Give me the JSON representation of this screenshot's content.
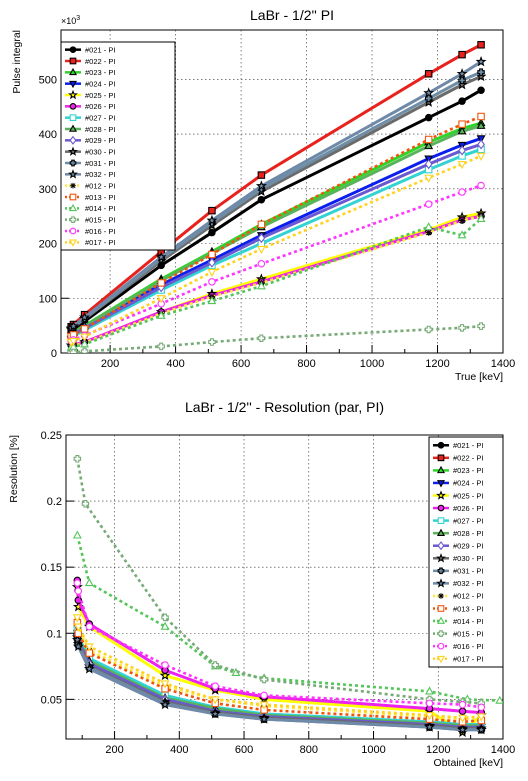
{
  "series_styles": [
    {
      "name": "#021 - PI",
      "color": "#000000",
      "dash": false,
      "marker": "circle-filled"
    },
    {
      "name": "#022 - PI",
      "color": "#e8211c",
      "dash": false,
      "marker": "square-filled"
    },
    {
      "name": "#023 - PI",
      "color": "#2fd62a",
      "dash": false,
      "marker": "triangle-filled"
    },
    {
      "name": "#024 - PI",
      "color": "#0a1ef0",
      "dash": false,
      "marker": "triangle-down-filled"
    },
    {
      "name": "#025 - PI",
      "color": "#ffff00",
      "dash": false,
      "marker": "star-filled"
    },
    {
      "name": "#026 - PI",
      "color": "#ee22ee",
      "dash": false,
      "marker": "circle-filled"
    },
    {
      "name": "#027 - PI",
      "color": "#33d3d3",
      "dash": false,
      "marker": "square-open"
    },
    {
      "name": "#028 - PI",
      "color": "#59b35a",
      "dash": false,
      "marker": "triangle-filled"
    },
    {
      "name": "#029 - PI",
      "color": "#6a59d0",
      "dash": false,
      "marker": "diamond-open"
    },
    {
      "name": "#030 - PI",
      "color": "#6b6b6b",
      "dash": false,
      "marker": "star-filled"
    },
    {
      "name": "#031 - PI",
      "color": "#6e8da6",
      "dash": false,
      "marker": "cross-filled"
    },
    {
      "name": "#032 - PI",
      "color": "#6f8aa8",
      "dash": false,
      "marker": "star-filled"
    },
    {
      "name": "#012 - PI",
      "color": "#ffe83a",
      "dash": true,
      "marker": "asterisk"
    },
    {
      "name": "#013 - PI",
      "color": "#f0550e",
      "dash": true,
      "marker": "square-open"
    },
    {
      "name": "#014 - PI",
      "color": "#55c55a",
      "dash": true,
      "marker": "triangle-open"
    },
    {
      "name": "#015 - PI",
      "color": "#77aa77",
      "dash": true,
      "marker": "cross-open"
    },
    {
      "name": "#016 - PI",
      "color": "#ff33ff",
      "dash": true,
      "marker": "circle-open"
    },
    {
      "name": "#017 - PI",
      "color": "#ffd21e",
      "dash": true,
      "marker": "triangle-down-open"
    }
  ],
  "chart_data": [
    {
      "type": "line",
      "title": "LaBr - 1/2'' PI",
      "xlabel": "True [keV]",
      "ylabel": "Pulse integral",
      "y_exponent_label": "×10",
      "y_exponent_power": "3",
      "xlim": [
        50,
        1400
      ],
      "ylim": [
        0,
        590
      ],
      "xticks": [
        200,
        400,
        600,
        800,
        1000,
        1200,
        1400
      ],
      "yticks": [
        0,
        100,
        200,
        300,
        400,
        500
      ],
      "grid": true,
      "legend_position": "top-left",
      "x": [
        81,
        88,
        122,
        356,
        511,
        662,
        1173,
        1275,
        1333
      ],
      "series": [
        {
          "name": "#021 - PI",
          "values": [
            40,
            43,
            58,
            160,
            220,
            280,
            430,
            460,
            480
          ]
        },
        {
          "name": "#022 - PI",
          "values": [
            48,
            52,
            70,
            185,
            260,
            325,
            510,
            545,
            563
          ]
        },
        {
          "name": "#023 - PI",
          "values": [
            35,
            38,
            50,
            135,
            185,
            235,
            385,
            410,
            420
          ]
        },
        {
          "name": "#024 - PI",
          "values": [
            32,
            35,
            47,
            125,
            170,
            215,
            355,
            380,
            392
          ]
        },
        {
          "name": "#025 - PI",
          "values": [
            14,
            15,
            20,
            75,
            108,
            135,
            225,
            248,
            255
          ]
        },
        {
          "name": "#026 - PI",
          "values": [
            14,
            15,
            20,
            75,
            105,
            130,
            222,
            243,
            250
          ]
        },
        {
          "name": "#027 - PI",
          "values": [
            28,
            31,
            42,
            115,
            160,
            200,
            335,
            360,
            372
          ]
        },
        {
          "name": "#028 - PI",
          "values": [
            34,
            37,
            49,
            132,
            182,
            230,
            378,
            405,
            415
          ]
        },
        {
          "name": "#029 - PI",
          "values": [
            31,
            34,
            45,
            120,
            165,
            210,
            345,
            370,
            381
          ]
        },
        {
          "name": "#030 - PI",
          "values": [
            43,
            47,
            62,
            168,
            233,
            295,
            458,
            490,
            505
          ]
        },
        {
          "name": "#031 - PI",
          "values": [
            44,
            48,
            63,
            172,
            238,
            300,
            465,
            498,
            513
          ]
        },
        {
          "name": "#032 - PI",
          "values": [
            45,
            49,
            65,
            175,
            242,
            305,
            475,
            510,
            532
          ]
        },
        {
          "name": "#012 - PI",
          "values": [
            12,
            13,
            19,
            72,
            103,
            128,
            220,
            242,
            250
          ]
        },
        {
          "name": "#013 - PI",
          "values": [
            30,
            33,
            44,
            128,
            180,
            235,
            390,
            418,
            432
          ]
        },
        {
          "name": "#014 - PI",
          "values": [
            10,
            11,
            16,
            68,
            95,
            122,
            230,
            215,
            245
          ]
        },
        {
          "name": "#015 - PI",
          "values": [
            1,
            1,
            3,
            12,
            20,
            27,
            43,
            46,
            49
          ]
        },
        {
          "name": "#016 - PI",
          "values": [
            22,
            24,
            32,
            90,
            130,
            163,
            272,
            294,
            306
          ]
        },
        {
          "name": "#017 - PI",
          "values": [
            20,
            22,
            30,
            100,
            148,
            190,
            320,
            345,
            360
          ]
        }
      ]
    },
    {
      "type": "line",
      "title": "LaBr - 1/2'' - Resolution (par, PI)",
      "xlabel": "Obtained [keV]",
      "ylabel": "Resolution [%]",
      "xlim": [
        50,
        1400
      ],
      "ylim": [
        0.02,
        0.25
      ],
      "xticks": [
        200,
        400,
        600,
        800,
        1000,
        1200,
        1400
      ],
      "yticks": [
        0.05,
        0.1,
        0.15,
        0.2,
        0.25
      ],
      "ytick_labels": [
        "0.05",
        "0.1",
        "0.15",
        "0.2",
        "0.25"
      ],
      "grid": true,
      "legend_position": "top-right",
      "series": [
        {
          "name": "#021 - PI",
          "x": [
            85,
            88,
            122,
            356,
            511,
            662,
            1173,
            1275,
            1333
          ],
          "values": [
            0.098,
            0.093,
            0.075,
            0.048,
            0.04,
            0.036,
            0.03,
            0.028,
            0.028
          ]
        },
        {
          "name": "#022 - PI",
          "x": [
            85,
            88,
            122,
            356,
            511,
            662,
            1173,
            1275,
            1333
          ],
          "values": [
            0.1,
            0.095,
            0.078,
            0.05,
            0.041,
            0.037,
            0.031,
            0.029,
            0.029
          ]
        },
        {
          "name": "#023 - PI",
          "x": [
            85,
            88,
            122,
            356,
            511,
            662,
            1173,
            1275,
            1333
          ],
          "values": [
            0.102,
            0.096,
            0.08,
            0.052,
            0.043,
            0.038,
            0.032,
            0.03,
            0.03
          ]
        },
        {
          "name": "#024 - PI",
          "x": [
            85,
            88,
            122,
            356,
            511,
            662,
            1173,
            1275,
            1333
          ],
          "values": [
            0.1,
            0.094,
            0.077,
            0.05,
            0.042,
            0.037,
            0.031,
            0.029,
            0.029
          ]
        },
        {
          "name": "#025 - PI",
          "x": [
            85,
            88,
            122,
            356,
            511,
            662,
            1173,
            1275,
            1333
          ],
          "values": [
            0.135,
            0.12,
            0.105,
            0.068,
            0.057,
            0.05,
            0.041,
            0.025,
            0.038
          ]
        },
        {
          "name": "#026 - PI",
          "x": [
            85,
            88,
            122,
            356,
            511,
            662,
            1173,
            1275,
            1333
          ],
          "values": [
            0.14,
            0.125,
            0.107,
            0.072,
            0.058,
            0.052,
            0.043,
            0.041,
            0.04
          ]
        },
        {
          "name": "#027 - PI",
          "x": [
            85,
            88,
            122,
            356,
            511,
            662,
            1173,
            1275,
            1333
          ],
          "values": [
            0.103,
            0.097,
            0.081,
            0.053,
            0.044,
            0.039,
            0.033,
            0.031,
            0.031
          ]
        },
        {
          "name": "#028 - PI",
          "x": [
            85,
            88,
            122,
            356,
            511,
            662,
            1173,
            1275,
            1333
          ],
          "values": [
            0.101,
            0.095,
            0.079,
            0.051,
            0.043,
            0.038,
            0.032,
            0.03,
            0.03
          ]
        },
        {
          "name": "#029 - PI",
          "x": [
            85,
            88,
            122,
            356,
            511,
            662,
            1173,
            1275,
            1333
          ],
          "values": [
            0.099,
            0.094,
            0.077,
            0.05,
            0.041,
            0.037,
            0.031,
            0.029,
            0.029
          ]
        },
        {
          "name": "#030 - PI",
          "x": [
            85,
            88,
            122,
            356,
            511,
            662,
            1173,
            1275,
            1333
          ],
          "values": [
            0.097,
            0.092,
            0.075,
            0.048,
            0.04,
            0.036,
            0.03,
            0.028,
            0.028
          ]
        },
        {
          "name": "#031 - PI",
          "x": [
            85,
            88,
            122,
            356,
            511,
            662,
            1173,
            1275,
            1333
          ],
          "values": [
            0.096,
            0.091,
            0.074,
            0.047,
            0.039,
            0.035,
            0.029,
            0.027,
            0.027
          ]
        },
        {
          "name": "#032 - PI",
          "x": [
            85,
            88,
            122,
            356,
            511,
            662,
            1173,
            1275,
            1333
          ],
          "values": [
            0.095,
            0.09,
            0.073,
            0.046,
            0.039,
            0.035,
            0.029,
            0.027,
            0.027
          ]
        },
        {
          "name": "#012 - PI",
          "x": [
            85,
            88,
            122,
            356,
            511,
            662,
            1173,
            1275,
            1333
          ],
          "values": [
            0.11,
            0.104,
            0.087,
            0.06,
            0.05,
            0.045,
            0.037,
            0.035,
            0.036
          ]
        },
        {
          "name": "#013 - PI",
          "x": [
            85,
            88,
            122,
            356,
            511,
            662,
            1173,
            1275,
            1333
          ],
          "values": [
            0.108,
            0.1,
            0.085,
            0.058,
            0.047,
            0.042,
            0.035,
            0.033,
            0.034
          ]
        },
        {
          "name": "#014 - PI",
          "x": [
            85,
            122,
            356,
            511,
            575,
            662,
            1173,
            1290,
            1390
          ],
          "values": [
            0.174,
            0.138,
            0.105,
            0.075,
            0.07,
            0.066,
            0.056,
            0.05,
            0.049
          ]
        },
        {
          "name": "#015 - PI",
          "x": [
            85,
            110,
            356,
            511,
            662,
            1173,
            1275,
            1333
          ],
          "values": [
            0.232,
            0.198,
            0.112,
            0.076,
            0.065,
            0.05,
            0.048,
            0.047
          ]
        },
        {
          "name": "#016 - PI",
          "x": [
            85,
            88,
            122,
            356,
            511,
            662,
            1173,
            1275,
            1333
          ],
          "values": [
            0.138,
            0.132,
            0.105,
            0.076,
            0.06,
            0.053,
            0.047,
            0.046,
            0.044
          ]
        },
        {
          "name": "#017 - PI",
          "x": [
            85,
            88,
            122,
            356,
            511,
            662,
            1173,
            1275,
            1333
          ],
          "values": [
            0.112,
            0.105,
            0.09,
            0.062,
            0.05,
            0.046,
            0.038,
            0.036,
            0.037
          ]
        }
      ]
    }
  ]
}
